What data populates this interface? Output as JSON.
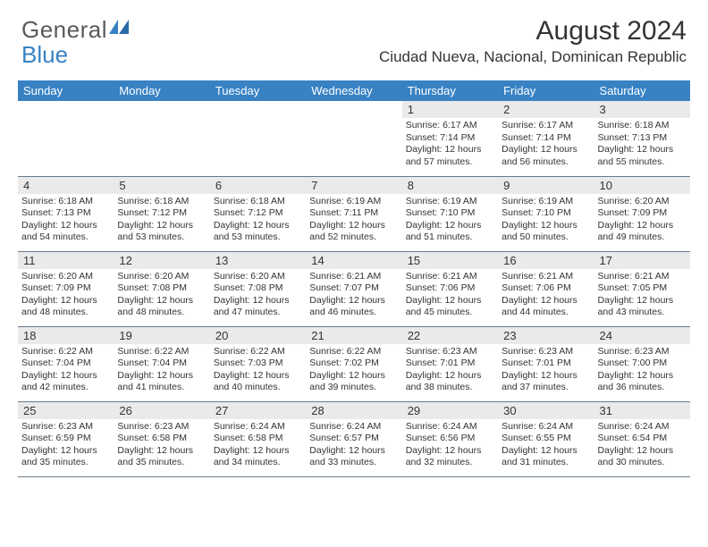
{
  "logo": {
    "text1": "General",
    "text2": "Blue"
  },
  "title": "August 2024",
  "location": "Ciudad Nueva, Nacional, Dominican Republic",
  "colors": {
    "header_bg": "#3882c4",
    "header_text": "#ffffff",
    "date_bg": "#eaeaea",
    "border": "#6a7a8a",
    "logo_gray": "#5a5a5a",
    "logo_blue": "#3882c4"
  },
  "day_headers": [
    "Sunday",
    "Monday",
    "Tuesday",
    "Wednesday",
    "Thursday",
    "Friday",
    "Saturday"
  ],
  "weeks": [
    [
      {
        "date": "",
        "sunrise": "",
        "sunset": "",
        "daylight": ""
      },
      {
        "date": "",
        "sunrise": "",
        "sunset": "",
        "daylight": ""
      },
      {
        "date": "",
        "sunrise": "",
        "sunset": "",
        "daylight": ""
      },
      {
        "date": "",
        "sunrise": "",
        "sunset": "",
        "daylight": ""
      },
      {
        "date": "1",
        "sunrise": "Sunrise: 6:17 AM",
        "sunset": "Sunset: 7:14 PM",
        "daylight": "Daylight: 12 hours and 57 minutes."
      },
      {
        "date": "2",
        "sunrise": "Sunrise: 6:17 AM",
        "sunset": "Sunset: 7:14 PM",
        "daylight": "Daylight: 12 hours and 56 minutes."
      },
      {
        "date": "3",
        "sunrise": "Sunrise: 6:18 AM",
        "sunset": "Sunset: 7:13 PM",
        "daylight": "Daylight: 12 hours and 55 minutes."
      }
    ],
    [
      {
        "date": "4",
        "sunrise": "Sunrise: 6:18 AM",
        "sunset": "Sunset: 7:13 PM",
        "daylight": "Daylight: 12 hours and 54 minutes."
      },
      {
        "date": "5",
        "sunrise": "Sunrise: 6:18 AM",
        "sunset": "Sunset: 7:12 PM",
        "daylight": "Daylight: 12 hours and 53 minutes."
      },
      {
        "date": "6",
        "sunrise": "Sunrise: 6:18 AM",
        "sunset": "Sunset: 7:12 PM",
        "daylight": "Daylight: 12 hours and 53 minutes."
      },
      {
        "date": "7",
        "sunrise": "Sunrise: 6:19 AM",
        "sunset": "Sunset: 7:11 PM",
        "daylight": "Daylight: 12 hours and 52 minutes."
      },
      {
        "date": "8",
        "sunrise": "Sunrise: 6:19 AM",
        "sunset": "Sunset: 7:10 PM",
        "daylight": "Daylight: 12 hours and 51 minutes."
      },
      {
        "date": "9",
        "sunrise": "Sunrise: 6:19 AM",
        "sunset": "Sunset: 7:10 PM",
        "daylight": "Daylight: 12 hours and 50 minutes."
      },
      {
        "date": "10",
        "sunrise": "Sunrise: 6:20 AM",
        "sunset": "Sunset: 7:09 PM",
        "daylight": "Daylight: 12 hours and 49 minutes."
      }
    ],
    [
      {
        "date": "11",
        "sunrise": "Sunrise: 6:20 AM",
        "sunset": "Sunset: 7:09 PM",
        "daylight": "Daylight: 12 hours and 48 minutes."
      },
      {
        "date": "12",
        "sunrise": "Sunrise: 6:20 AM",
        "sunset": "Sunset: 7:08 PM",
        "daylight": "Daylight: 12 hours and 48 minutes."
      },
      {
        "date": "13",
        "sunrise": "Sunrise: 6:20 AM",
        "sunset": "Sunset: 7:08 PM",
        "daylight": "Daylight: 12 hours and 47 minutes."
      },
      {
        "date": "14",
        "sunrise": "Sunrise: 6:21 AM",
        "sunset": "Sunset: 7:07 PM",
        "daylight": "Daylight: 12 hours and 46 minutes."
      },
      {
        "date": "15",
        "sunrise": "Sunrise: 6:21 AM",
        "sunset": "Sunset: 7:06 PM",
        "daylight": "Daylight: 12 hours and 45 minutes."
      },
      {
        "date": "16",
        "sunrise": "Sunrise: 6:21 AM",
        "sunset": "Sunset: 7:06 PM",
        "daylight": "Daylight: 12 hours and 44 minutes."
      },
      {
        "date": "17",
        "sunrise": "Sunrise: 6:21 AM",
        "sunset": "Sunset: 7:05 PM",
        "daylight": "Daylight: 12 hours and 43 minutes."
      }
    ],
    [
      {
        "date": "18",
        "sunrise": "Sunrise: 6:22 AM",
        "sunset": "Sunset: 7:04 PM",
        "daylight": "Daylight: 12 hours and 42 minutes."
      },
      {
        "date": "19",
        "sunrise": "Sunrise: 6:22 AM",
        "sunset": "Sunset: 7:04 PM",
        "daylight": "Daylight: 12 hours and 41 minutes."
      },
      {
        "date": "20",
        "sunrise": "Sunrise: 6:22 AM",
        "sunset": "Sunset: 7:03 PM",
        "daylight": "Daylight: 12 hours and 40 minutes."
      },
      {
        "date": "21",
        "sunrise": "Sunrise: 6:22 AM",
        "sunset": "Sunset: 7:02 PM",
        "daylight": "Daylight: 12 hours and 39 minutes."
      },
      {
        "date": "22",
        "sunrise": "Sunrise: 6:23 AM",
        "sunset": "Sunset: 7:01 PM",
        "daylight": "Daylight: 12 hours and 38 minutes."
      },
      {
        "date": "23",
        "sunrise": "Sunrise: 6:23 AM",
        "sunset": "Sunset: 7:01 PM",
        "daylight": "Daylight: 12 hours and 37 minutes."
      },
      {
        "date": "24",
        "sunrise": "Sunrise: 6:23 AM",
        "sunset": "Sunset: 7:00 PM",
        "daylight": "Daylight: 12 hours and 36 minutes."
      }
    ],
    [
      {
        "date": "25",
        "sunrise": "Sunrise: 6:23 AM",
        "sunset": "Sunset: 6:59 PM",
        "daylight": "Daylight: 12 hours and 35 minutes."
      },
      {
        "date": "26",
        "sunrise": "Sunrise: 6:23 AM",
        "sunset": "Sunset: 6:58 PM",
        "daylight": "Daylight: 12 hours and 35 minutes."
      },
      {
        "date": "27",
        "sunrise": "Sunrise: 6:24 AM",
        "sunset": "Sunset: 6:58 PM",
        "daylight": "Daylight: 12 hours and 34 minutes."
      },
      {
        "date": "28",
        "sunrise": "Sunrise: 6:24 AM",
        "sunset": "Sunset: 6:57 PM",
        "daylight": "Daylight: 12 hours and 33 minutes."
      },
      {
        "date": "29",
        "sunrise": "Sunrise: 6:24 AM",
        "sunset": "Sunset: 6:56 PM",
        "daylight": "Daylight: 12 hours and 32 minutes."
      },
      {
        "date": "30",
        "sunrise": "Sunrise: 6:24 AM",
        "sunset": "Sunset: 6:55 PM",
        "daylight": "Daylight: 12 hours and 31 minutes."
      },
      {
        "date": "31",
        "sunrise": "Sunrise: 6:24 AM",
        "sunset": "Sunset: 6:54 PM",
        "daylight": "Daylight: 12 hours and 30 minutes."
      }
    ]
  ]
}
